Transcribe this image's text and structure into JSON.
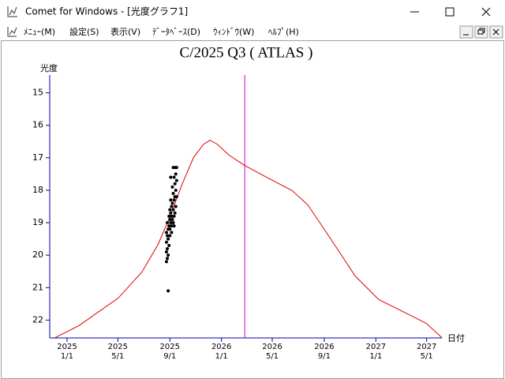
{
  "window": {
    "title": "Comet for Windows - [光度グラフ1]",
    "menu": [
      "ﾒﾆｭｰ(M)",
      "設定(S)",
      "表示(V)",
      "ﾃﾞｰﾀﾍﾞｰｽ(D)",
      "ｳｨﾝﾄﾞｳ(W)",
      "ﾍﾙﾌﾟ(H)"
    ]
  },
  "chart_data": {
    "type": "line",
    "title": "C/2025 Q3 ( ATLAS )",
    "y_label": "光度",
    "x_label": "日付",
    "xlim": [
      "2024-11-21",
      "2027-06-06"
    ],
    "xticks": [
      {
        "value": "2025-01-01",
        "label": [
          "2025",
          "1/1"
        ]
      },
      {
        "value": "2025-05-01",
        "label": [
          "2025",
          "5/1"
        ]
      },
      {
        "value": "2025-09-01",
        "label": [
          "2025",
          "9/1"
        ]
      },
      {
        "value": "2026-01-01",
        "label": [
          "2026",
          "1/1"
        ]
      },
      {
        "value": "2026-05-01",
        "label": [
          "2026",
          "5/1"
        ]
      },
      {
        "value": "2026-09-01",
        "label": [
          "2026",
          "9/1"
        ]
      },
      {
        "value": "2027-01-01",
        "label": [
          "2027",
          "1/1"
        ]
      },
      {
        "value": "2027-05-01",
        "label": [
          "2027",
          "5/1"
        ]
      }
    ],
    "ylim": [
      22.55,
      14.45
    ],
    "yticks": [
      15,
      16,
      17,
      18,
      19,
      20,
      21,
      22
    ],
    "marker": {
      "x": "2026-02-25",
      "color": "#cc00cc"
    },
    "curve": {
      "color": "#dd0000",
      "x": [
        "2024-12-04",
        "2025-01-29",
        "2025-05-02",
        "2025-06-27",
        "2025-08-04",
        "2025-09-01",
        "2025-09-29",
        "2025-10-27",
        "2025-11-20",
        "2025-12-05",
        "2025-12-22",
        "2026-01-19",
        "2026-02-25",
        "2026-04-22",
        "2026-06-17",
        "2026-07-24",
        "2026-08-31",
        "2026-10-07",
        "2026-11-13",
        "2027-01-08",
        "2027-03-05",
        "2027-04-30",
        "2027-06-06"
      ],
      "values": [
        22.54,
        22.17,
        21.32,
        20.52,
        19.67,
        18.82,
        17.84,
        16.99,
        16.58,
        16.46,
        16.58,
        16.92,
        17.24,
        17.63,
        18.01,
        18.45,
        19.18,
        19.91,
        20.64,
        21.37,
        21.73,
        22.1,
        22.54
      ]
    },
    "observations": {
      "color": "#000000",
      "x": [
        "2025-08-24",
        "2025-08-24",
        "2025-08-24",
        "2025-08-24",
        "2025-08-26",
        "2025-08-26",
        "2025-08-26",
        "2025-08-26",
        "2025-08-28",
        "2025-08-28",
        "2025-08-28",
        "2025-08-28",
        "2025-08-30",
        "2025-08-30",
        "2025-08-30",
        "2025-09-01",
        "2025-09-01",
        "2025-09-01",
        "2025-09-01",
        "2025-09-03",
        "2025-09-03",
        "2025-09-03",
        "2025-09-03",
        "2025-09-05",
        "2025-09-05",
        "2025-09-05",
        "2025-09-05",
        "2025-09-07",
        "2025-09-07",
        "2025-09-07",
        "2025-09-09",
        "2025-09-09",
        "2025-09-09",
        "2025-09-09",
        "2025-09-11",
        "2025-09-11",
        "2025-09-11",
        "2025-09-11",
        "2025-09-13",
        "2025-09-13",
        "2025-09-13",
        "2025-09-13",
        "2025-09-15",
        "2025-09-15",
        "2025-09-15",
        "2025-09-17",
        "2025-09-17",
        "2025-09-17"
      ],
      "values": [
        19.3,
        19.6,
        19.9,
        20.2,
        19.0,
        19.4,
        19.8,
        20.1,
        19.2,
        19.5,
        20.0,
        21.1,
        18.8,
        19.1,
        19.7,
        18.6,
        18.9,
        19.2,
        19.4,
        17.6,
        18.3,
        18.7,
        19.0,
        18.5,
        18.8,
        19.1,
        19.3,
        17.9,
        18.4,
        18.9,
        17.3,
        18.1,
        18.6,
        19.0,
        17.6,
        18.3,
        18.8,
        19.1,
        17.3,
        17.8,
        18.2,
        18.7,
        17.5,
        18.0,
        18.5,
        17.3,
        17.7,
        18.2
      ]
    }
  }
}
